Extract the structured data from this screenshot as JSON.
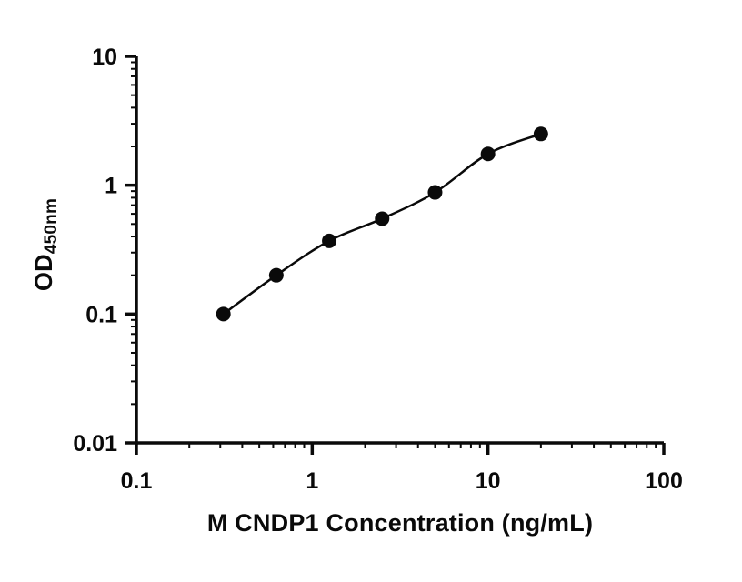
{
  "chart_data": {
    "type": "scatter",
    "title": "",
    "xlabel": "M CNDP1 Concentration (ng/mL)",
    "ylabel": "OD",
    "ylabel_sub": "450nm",
    "xscale": "log",
    "yscale": "log",
    "xlim": [
      0.1,
      100
    ],
    "ylim": [
      0.01,
      10
    ],
    "grid": false,
    "legend": null,
    "curve": "smooth-fit-through-points",
    "x": [
      0.3125,
      0.625,
      1.25,
      2.5,
      5,
      10,
      20
    ],
    "y": [
      0.1,
      0.2,
      0.37,
      0.55,
      0.88,
      1.75,
      2.5
    ],
    "x_ticks": [
      {
        "v": 0.1,
        "label": "0.1"
      },
      {
        "v": 1,
        "label": "1"
      },
      {
        "v": 10,
        "label": "10"
      },
      {
        "v": 100,
        "label": "100"
      }
    ],
    "y_ticks": [
      {
        "v": 0.01,
        "label": "0.01"
      },
      {
        "v": 0.1,
        "label": "0.1"
      },
      {
        "v": 1,
        "label": "1"
      },
      {
        "v": 10,
        "label": "10"
      }
    ],
    "colors": {
      "axis": "#0a0a0a",
      "marker": "#0a0a0a",
      "line": "#0a0a0a",
      "text": "#0a0a0a",
      "background": "#ffffff"
    },
    "marker": "circle",
    "marker_radius": 8
  }
}
